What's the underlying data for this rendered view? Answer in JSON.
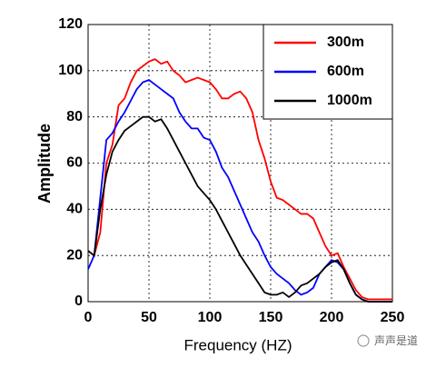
{
  "chart_data": {
    "type": "line",
    "x_label": "Frequency (HZ)",
    "y_label": "Amplitude",
    "x": [
      0,
      5,
      10,
      15,
      20,
      25,
      30,
      35,
      40,
      45,
      50,
      55,
      60,
      65,
      70,
      75,
      80,
      85,
      90,
      95,
      100,
      105,
      110,
      115,
      120,
      125,
      130,
      135,
      140,
      145,
      150,
      155,
      160,
      165,
      170,
      175,
      180,
      185,
      190,
      195,
      200,
      205,
      210,
      215,
      220,
      225,
      230,
      235,
      240,
      245,
      250
    ],
    "series": [
      {
        "name": "300m",
        "color": "#ff0000",
        "values": [
          22,
          20,
          30,
          60,
          68,
          85,
          88,
          95,
          100,
          102,
          104,
          105,
          103,
          104,
          100,
          98,
          95,
          96,
          97,
          96,
          95,
          92,
          88,
          88,
          90,
          91,
          88,
          82,
          70,
          62,
          52,
          45,
          44,
          42,
          40,
          38,
          38,
          36,
          30,
          24,
          20,
          21,
          15,
          10,
          5,
          2,
          1,
          1,
          1,
          1,
          1
        ]
      },
      {
        "name": "600m",
        "color": "#0000ff",
        "values": [
          14,
          20,
          45,
          70,
          73,
          78,
          82,
          87,
          92,
          95,
          96,
          94,
          92,
          90,
          88,
          82,
          78,
          75,
          75,
          71,
          70,
          65,
          58,
          54,
          48,
          42,
          36,
          30,
          26,
          20,
          15,
          12,
          10,
          8,
          5,
          3,
          4,
          6,
          12,
          15,
          18,
          17,
          14,
          8,
          3,
          1,
          0,
          0,
          0,
          0,
          0
        ]
      },
      {
        "name": "1000m",
        "color": "#000000",
        "values": [
          22,
          20,
          40,
          55,
          65,
          70,
          74,
          76,
          78,
          80,
          80,
          78,
          79,
          75,
          70,
          65,
          60,
          55,
          50,
          47,
          44,
          40,
          35,
          30,
          25,
          20,
          16,
          12,
          8,
          4,
          3,
          3,
          4,
          2,
          4,
          7,
          8,
          10,
          12,
          15,
          17,
          18,
          14,
          8,
          3,
          1,
          0,
          0,
          0,
          0,
          0
        ]
      }
    ],
    "xlim": [
      0,
      250
    ],
    "xticks": [
      0,
      50,
      100,
      150,
      200,
      250
    ],
    "ylim": [
      0,
      120
    ],
    "yticks": [
      0,
      20,
      40,
      60,
      80,
      100,
      120
    ],
    "grid": true,
    "legend": "top-right"
  },
  "watermark": "声声是道"
}
